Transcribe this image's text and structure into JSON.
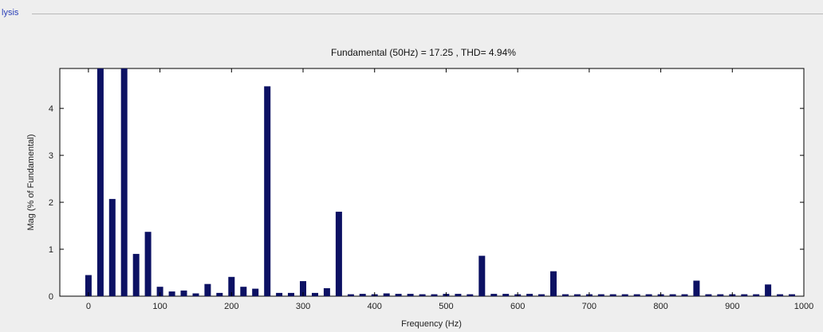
{
  "panel": {
    "title": "lysis"
  },
  "chart_data": {
    "type": "bar",
    "title": "Fundamental (50Hz) = 17.25 , THD= 4.94%",
    "xlabel": "Frequency (Hz)",
    "ylabel": "Mag (% of Fundamental)",
    "xlim": [
      -40,
      1000
    ],
    "ylim": [
      0,
      4.85
    ],
    "xticks": [
      0,
      100,
      200,
      300,
      400,
      500,
      600,
      700,
      800,
      900,
      1000
    ],
    "yticks": [
      0,
      1,
      2,
      3,
      4
    ],
    "grid": false,
    "bar_color": "#0c1163",
    "series": [
      {
        "x": [
          0,
          16.7,
          33.3,
          50,
          66.7,
          83.3,
          100,
          116.7,
          133.3,
          150,
          166.7,
          183.3,
          200,
          216.7,
          233.3,
          250,
          266.7,
          283.3,
          300,
          316.7,
          333.3,
          350,
          366.7,
          383.3,
          400,
          416.7,
          433.3,
          450,
          466.7,
          483.3,
          500,
          516.7,
          533.3,
          550,
          566.7,
          583.3,
          600,
          616.7,
          633.3,
          650,
          666.7,
          683.3,
          700,
          716.7,
          733.3,
          750,
          766.7,
          783.3,
          800,
          816.7,
          833.3,
          850,
          866.7,
          883.3,
          900,
          916.7,
          933.3,
          950,
          966.7,
          983.3
        ],
        "y": [
          0.45,
          4.85,
          2.07,
          4.85,
          0.9,
          1.37,
          0.2,
          0.1,
          0.12,
          0.06,
          0.26,
          0.07,
          0.41,
          0.2,
          0.16,
          4.47,
          0.07,
          0.07,
          0.32,
          0.07,
          0.17,
          1.8,
          0.04,
          0.05,
          0.04,
          0.06,
          0.05,
          0.05,
          0.04,
          0.04,
          0.05,
          0.05,
          0.04,
          0.86,
          0.05,
          0.05,
          0.04,
          0.05,
          0.04,
          0.53,
          0.04,
          0.04,
          0.04,
          0.04,
          0.04,
          0.04,
          0.04,
          0.04,
          0.04,
          0.04,
          0.04,
          0.33,
          0.04,
          0.04,
          0.04,
          0.04,
          0.04,
          0.25,
          0.04,
          0.04
        ]
      }
    ]
  }
}
